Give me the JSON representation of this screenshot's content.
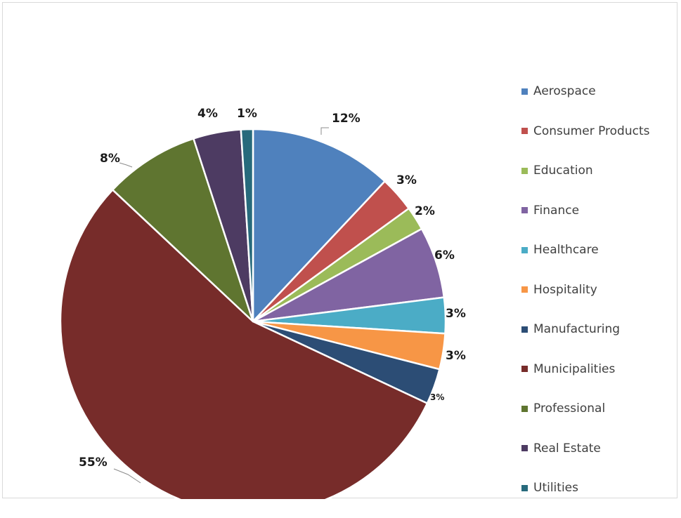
{
  "chart_data": {
    "type": "pie",
    "categories": [
      "Aerospace",
      "Consumer Products",
      "Education",
      "Finance",
      "Healthcare",
      "Hospitality",
      "Manufacturing",
      "Municipalities",
      "Professional",
      "Real Estate",
      "Utilities"
    ],
    "values": [
      12,
      3,
      2,
      6,
      3,
      3,
      3,
      55,
      8,
      4,
      1
    ],
    "data_labels": [
      "12%",
      "3%",
      "2%",
      "6%",
      "3%",
      "3%",
      "3%",
      "55%",
      "8%",
      "4%",
      "1%"
    ],
    "colors": [
      "#4f81bd",
      "#c0504d",
      "#9bbb59",
      "#8064a2",
      "#4bacc6",
      "#f79646",
      "#2c4d75",
      "#772c2a",
      "#5f7530",
      "#4d3b62",
      "#276a7c"
    ],
    "start_angle": "12 o'clock",
    "direction": "clockwise",
    "title": "",
    "legend_position": "right"
  }
}
